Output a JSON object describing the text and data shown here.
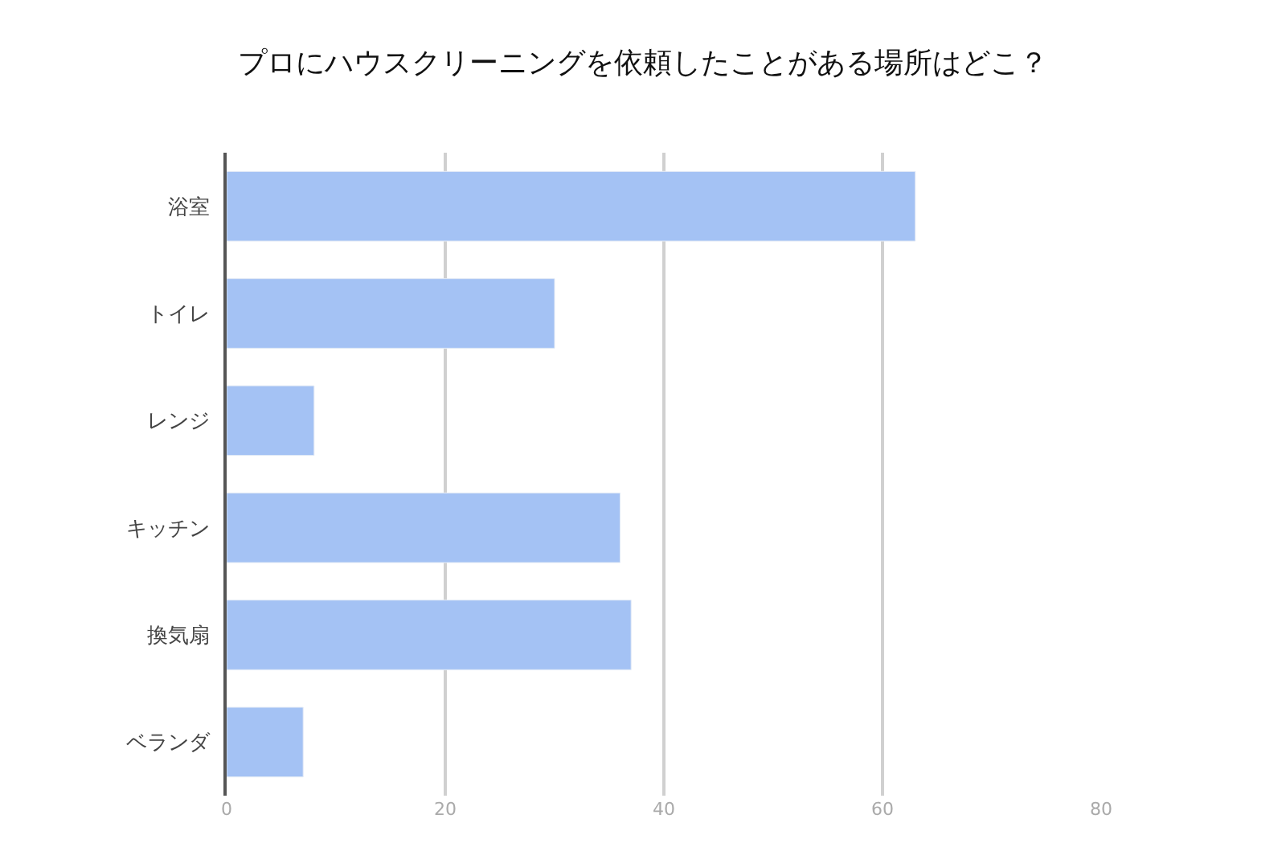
{
  "chart_data": {
    "type": "bar",
    "orientation": "horizontal",
    "title": "プロにハウスクリーニングを依頼したことがある場所はどこ？",
    "categories": [
      "浴室",
      "トイレ",
      "レンジ",
      "キッチン",
      "換気扇",
      "ベランダ"
    ],
    "values": [
      63,
      30,
      8,
      36,
      37,
      7
    ],
    "color": "#a4c2f4",
    "xlim": [
      0,
      80
    ],
    "xticks": [
      0,
      20,
      40,
      60,
      80
    ],
    "grid": "x",
    "legend": false
  }
}
